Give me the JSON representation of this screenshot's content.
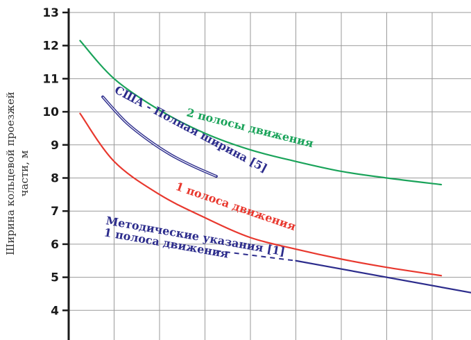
{
  "chart_data": {
    "type": "line",
    "title": "",
    "xlabel": "",
    "ylabel_lines": [
      "Ширина кольцевой проезжей",
      "части, м"
    ],
    "ylim": [
      3,
      13
    ],
    "yticks": [
      4,
      5,
      6,
      7,
      8,
      9,
      10,
      11,
      12,
      13
    ],
    "xlim": [
      0,
      9
    ],
    "grid": true,
    "colors": {
      "green": "#1aa35a",
      "red": "#e8382e",
      "blue": "#2c2c8c",
      "grid": "#9a9a9a",
      "axis": "#1a1a1a"
    },
    "series": [
      {
        "label": "2 полосы движения",
        "color": "#1aa35a",
        "x": [
          0.25,
          1,
          2,
          3,
          4,
          5,
          6,
          7,
          8.2
        ],
        "y": [
          12.15,
          11.0,
          10.05,
          9.35,
          8.85,
          8.5,
          8.2,
          8.0,
          7.8
        ]
      },
      {
        "label": "1 полоса движения",
        "color": "#e8382e",
        "x": [
          0.25,
          1,
          2,
          3,
          4,
          5,
          6,
          7,
          8.2
        ],
        "y": [
          9.95,
          8.5,
          7.5,
          6.8,
          6.2,
          5.85,
          5.55,
          5.3,
          5.05
        ]
      },
      {
        "label": "США - Полная ширина [5]",
        "color": "#2c2c8c",
        "x": [
          0.75,
          1.25,
          1.75,
          2.25,
          2.75,
          3.25
        ],
        "y": [
          10.45,
          9.7,
          9.15,
          8.7,
          8.35,
          8.05
        ]
      },
      {
        "label_lines": [
          "Методические указания [1]",
          "1 полоса движения"
        ],
        "color": "#2c2c8c",
        "x": [
          5,
          9
        ],
        "y": [
          5.5,
          4.5
        ]
      }
    ]
  }
}
